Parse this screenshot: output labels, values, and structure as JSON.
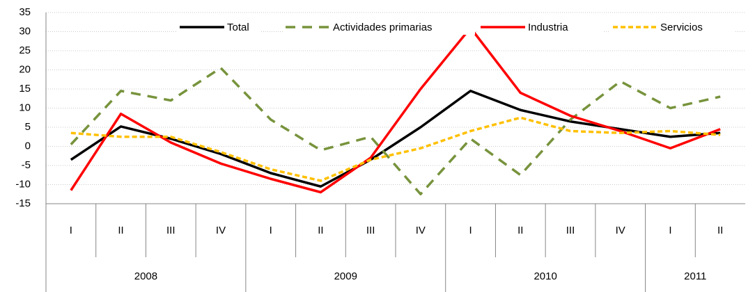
{
  "chart_data": {
    "type": "line",
    "groups": [
      {
        "label": "2008",
        "categories": [
          "I",
          "II",
          "III",
          "IV"
        ]
      },
      {
        "label": "2009",
        "categories": [
          "I",
          "II",
          "III",
          "IV"
        ]
      },
      {
        "label": "2010",
        "categories": [
          "I",
          "II",
          "III",
          "IV"
        ]
      },
      {
        "label": "2011",
        "categories": [
          "I",
          "II"
        ]
      }
    ],
    "series": [
      {
        "name": "Total",
        "color": "#000000",
        "dash": "solid",
        "values": [
          -3.5,
          5.2,
          2,
          -2,
          -7,
          -10.5,
          -3.5,
          5,
          14.5,
          9.5,
          6.5,
          4.5,
          2.5,
          3.5
        ]
      },
      {
        "name": "Actividades primarias",
        "color": "#77933c",
        "dash": "long",
        "values": [
          0.5,
          14.5,
          12,
          20.5,
          7,
          -1,
          2.5,
          -12.5,
          2,
          -7.5,
          7,
          17,
          10,
          13
        ]
      },
      {
        "name": "Industria",
        "color": "#ff0000",
        "dash": "solid",
        "values": [
          -11.5,
          8.5,
          1,
          -4.5,
          -8.5,
          -12,
          -3,
          15,
          31,
          14,
          8,
          4,
          -0.5,
          4.5
        ]
      },
      {
        "name": "Servicios",
        "color": "#ffc000",
        "dash": "short",
        "values": [
          3.5,
          2.5,
          2.5,
          -1.5,
          -6,
          -9,
          -3.5,
          -0.5,
          4,
          7.5,
          4,
          3.5,
          4,
          3
        ]
      }
    ],
    "ylim": [
      -15,
      35
    ],
    "yticks": [
      -15,
      -10,
      -5,
      0,
      5,
      10,
      15,
      20,
      25,
      30,
      35
    ],
    "grid": true,
    "legend": "top"
  }
}
